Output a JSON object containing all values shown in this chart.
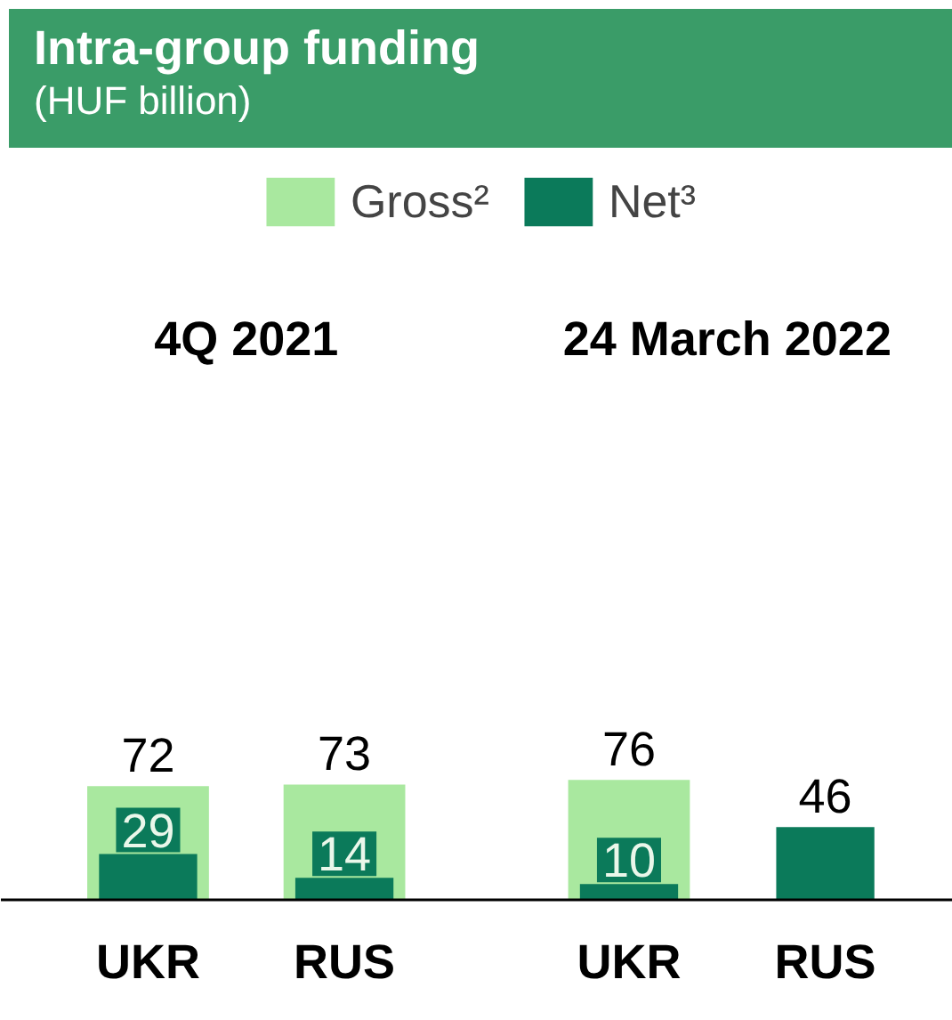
{
  "chart_data": {
    "type": "bar",
    "title": "Intra-group funding",
    "subtitle": "(HUF billion)",
    "categories": [
      "UKR",
      "RUS",
      "UKR",
      "RUS"
    ],
    "series": [
      {
        "name": "Gross²",
        "color": "#a9e89f",
        "values": [
          72,
          73,
          76,
          null
        ]
      },
      {
        "name": "Net³",
        "color": "#0b7a5a",
        "values": [
          29,
          14,
          10,
          46
        ]
      }
    ],
    "annotations": [
      "4Q 2021",
      "24 March 2022"
    ],
    "data_labels": true,
    "legend": "top",
    "grid": false
  }
}
